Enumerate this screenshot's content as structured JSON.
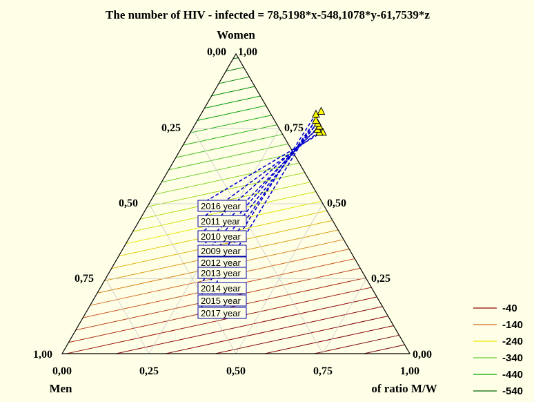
{
  "chart_data": {
    "type": "ternary-contour",
    "title": "The number of HIV - infected  = 78,5198*x-548,1078*y-61,7539*z",
    "axis_labels": {
      "top": "Women",
      "left": "Men",
      "right": "of ratio M/W"
    },
    "bottom_ticks": [
      "0,00",
      "0,25",
      "0,50",
      "0,75",
      "1,00"
    ],
    "left_ticks": [
      "1,00",
      "0,75",
      "0,50",
      "0,25",
      "0,00"
    ],
    "right_ticks": [
      "0,00",
      "0,25",
      "0,50",
      "0,75",
      "1,00"
    ],
    "formula": {
      "x": 78.5198,
      "y": -548.1078,
      "z": -61.7539
    },
    "legend": [
      {
        "label": "-40",
        "color": "#8b0000"
      },
      {
        "label": "-140",
        "color": "#d2691e"
      },
      {
        "label": "-240",
        "color": "#e6e600"
      },
      {
        "label": "-340",
        "color": "#66cc33"
      },
      {
        "label": "-440",
        "color": "#00a000"
      },
      {
        "label": "-540",
        "color": "#006400"
      }
    ],
    "points": [
      {
        "label": "2016 year",
        "x": 0.38,
        "y": 0.74
      },
      {
        "label": "2011 year",
        "x": 0.37,
        "y": 0.74
      },
      {
        "label": "2010 year",
        "x": 0.36,
        "y": 0.75
      },
      {
        "label": "2009 year",
        "x": 0.36,
        "y": 0.76
      },
      {
        "label": "2012 year",
        "x": 0.35,
        "y": 0.77
      },
      {
        "label": "2013 year",
        "x": 0.35,
        "y": 0.77
      },
      {
        "label": "2014 year",
        "x": 0.34,
        "y": 0.78
      },
      {
        "label": "2015 year",
        "x": 0.33,
        "y": 0.8
      },
      {
        "label": "2017 year",
        "x": 0.34,
        "y": 0.81
      }
    ]
  }
}
